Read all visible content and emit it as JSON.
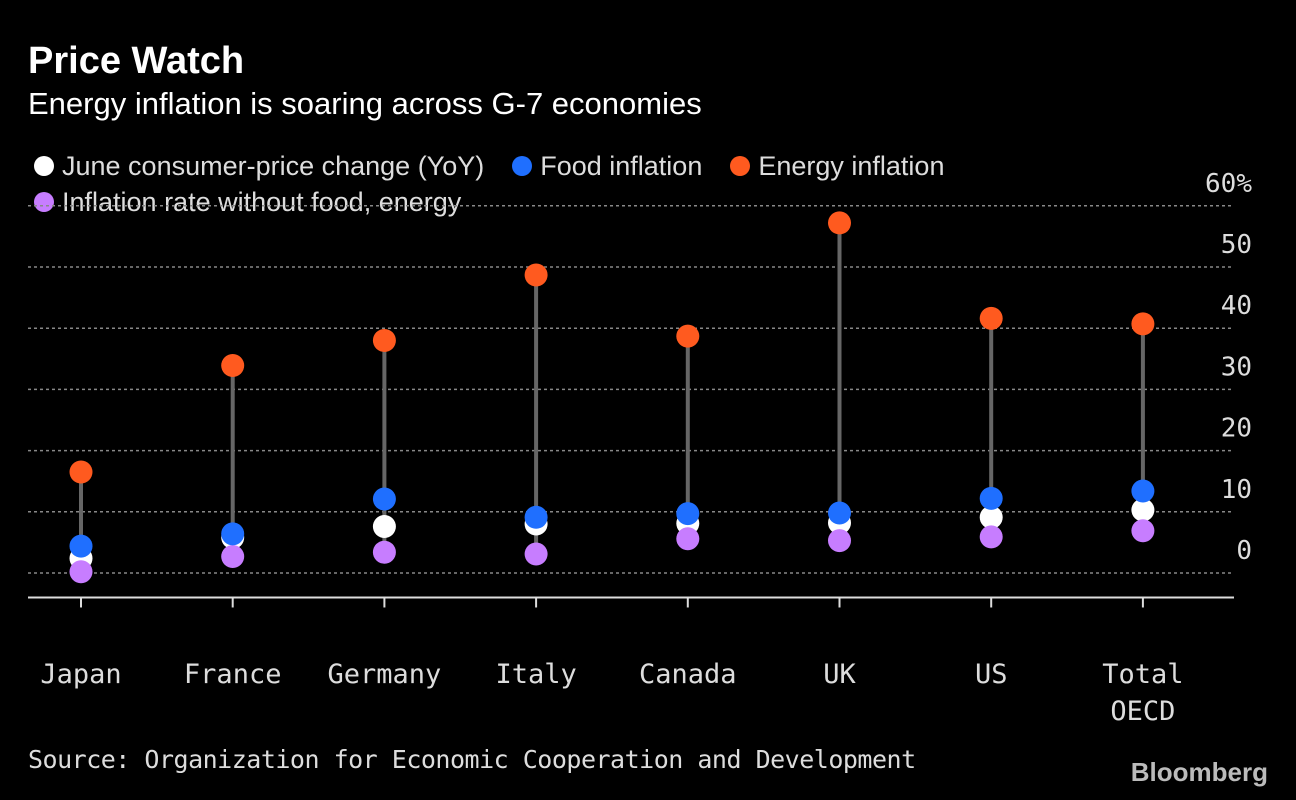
{
  "title": "Price Watch",
  "subtitle": "Energy inflation is soaring across G-7 economies",
  "legend": [
    {
      "label": "June consumer-price change (YoY)",
      "color": "#ffffff"
    },
    {
      "label": "Food inflation",
      "color": "#1f6fff"
    },
    {
      "label": "Energy inflation",
      "color": "#ff5a1f"
    },
    {
      "label": "Inflation rate without food, energy",
      "color": "#c77dff"
    }
  ],
  "source": "Source: Organization for Economic Cooperation and Development",
  "brand": "Bloomberg",
  "chart_data": {
    "type": "scatter",
    "categories": [
      "Japan",
      "France",
      "Germany",
      "Italy",
      "Canada",
      "UK",
      "US",
      "Total OECD"
    ],
    "series": [
      {
        "name": "June consumer-price change (YoY)",
        "color": "#ffffff",
        "values": [
          2.4,
          5.8,
          7.6,
          8.0,
          8.1,
          8.2,
          9.1,
          10.3
        ]
      },
      {
        "name": "Food inflation",
        "color": "#1f6fff",
        "values": [
          4.4,
          6.4,
          12.1,
          9.1,
          9.7,
          9.8,
          12.2,
          13.4
        ]
      },
      {
        "name": "Energy inflation",
        "color": "#ff5a1f",
        "values": [
          16.5,
          33.9,
          38.0,
          48.7,
          38.7,
          57.2,
          41.6,
          40.7
        ]
      },
      {
        "name": "Inflation rate without food, energy",
        "color": "#c77dff",
        "values": [
          0.2,
          2.7,
          3.4,
          3.1,
          5.6,
          5.3,
          5.9,
          6.9
        ]
      }
    ],
    "ylim": [
      -4,
      60
    ],
    "yticks": [
      0,
      10,
      20,
      30,
      40,
      50,
      60
    ],
    "ytick_labels": [
      "0",
      "10",
      "20",
      "30",
      "40",
      "50",
      "60%"
    ],
    "grid": true
  }
}
